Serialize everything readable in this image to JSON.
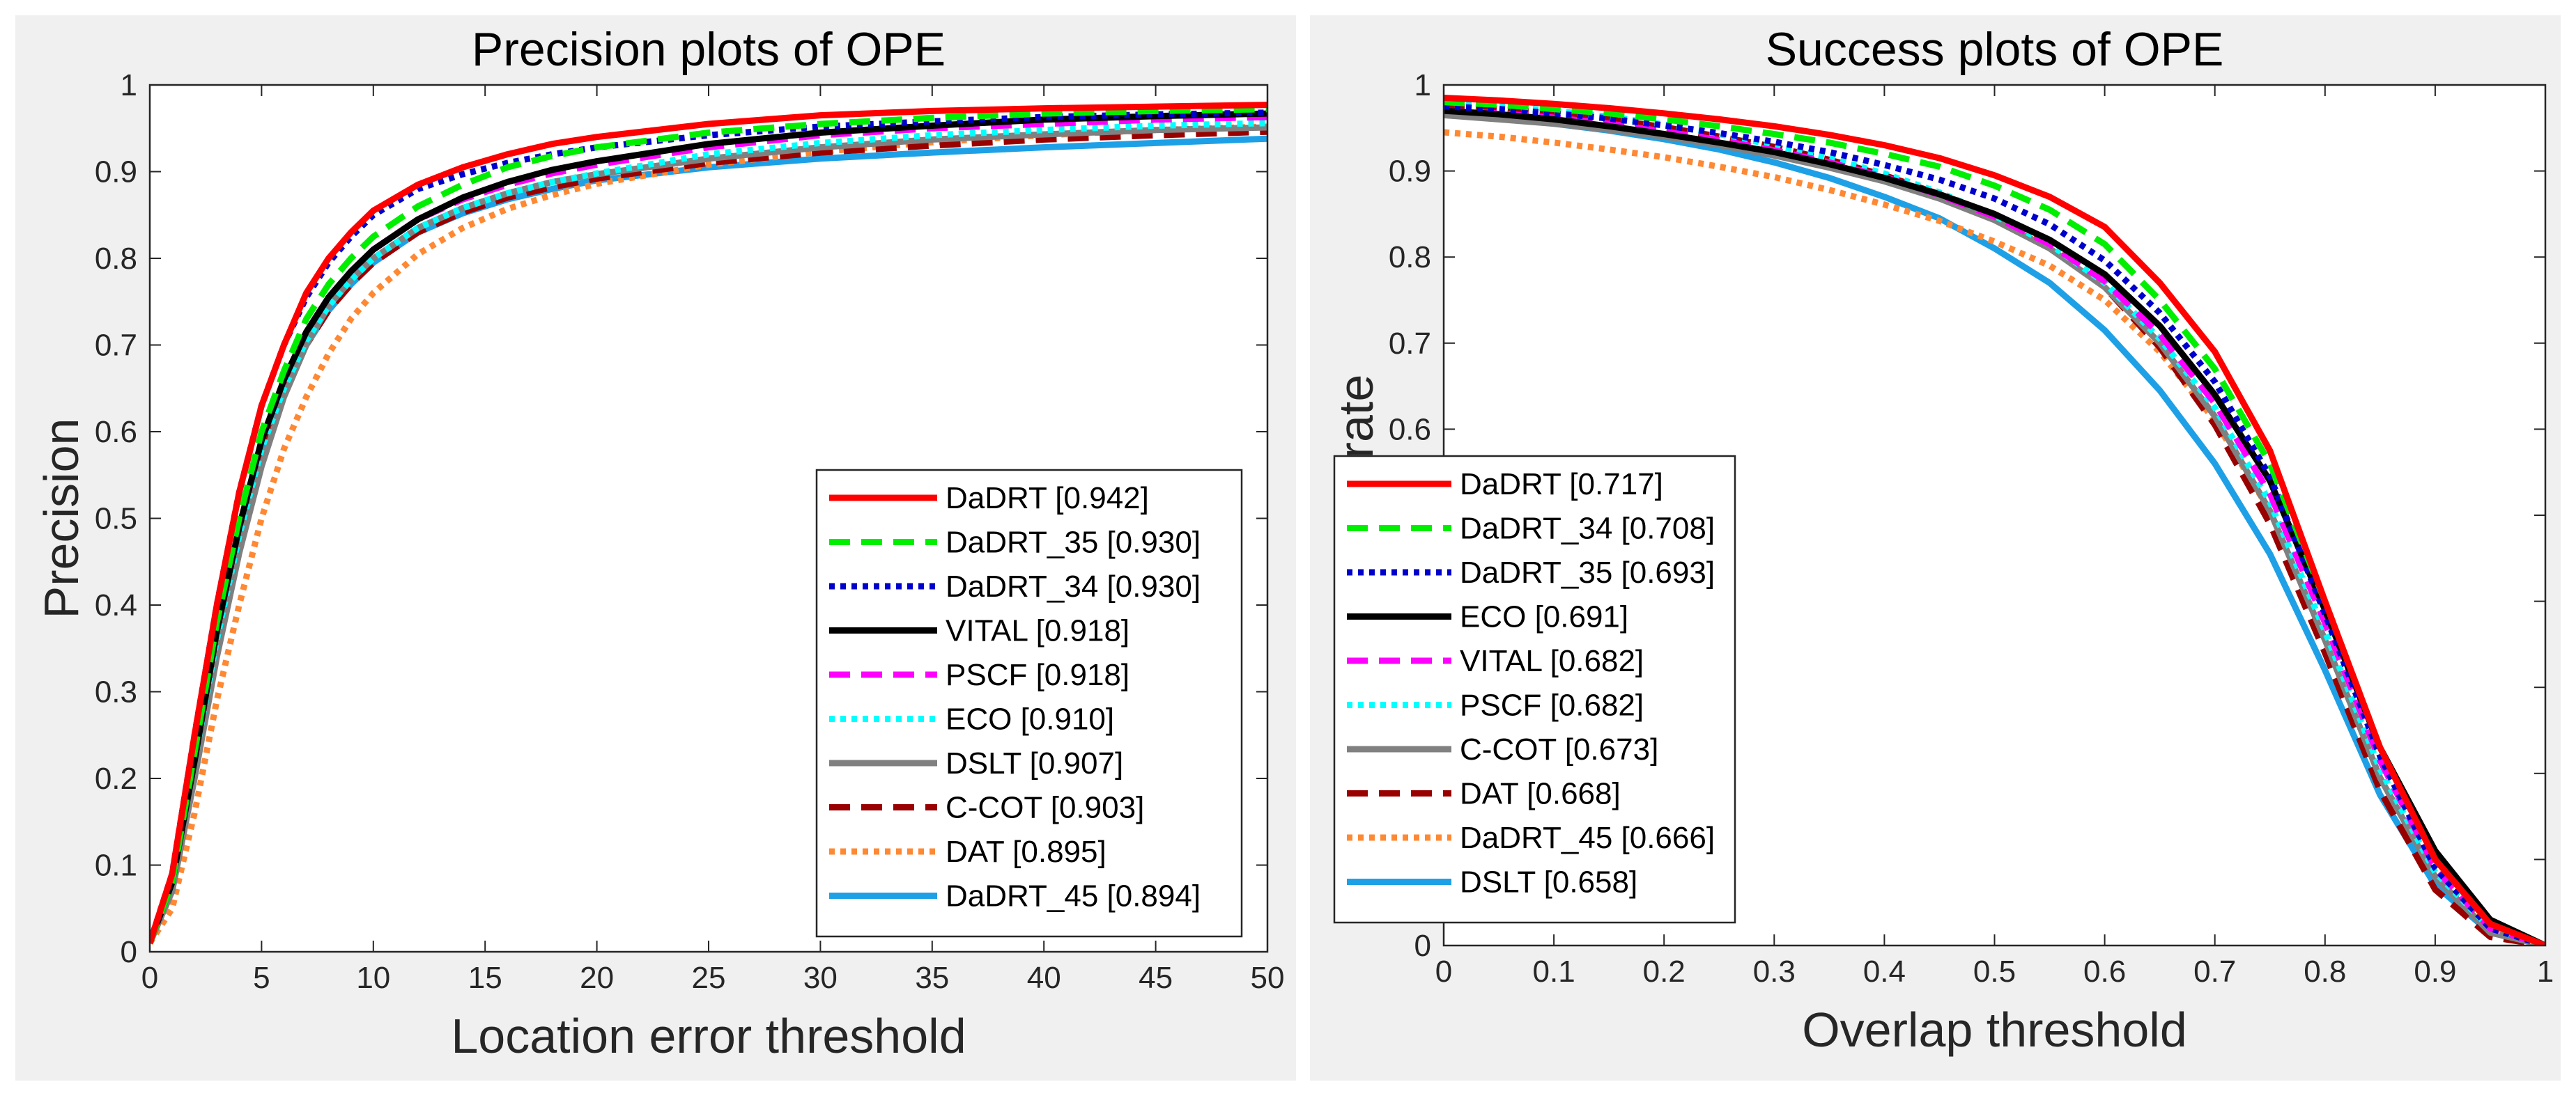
{
  "chart_data": [
    {
      "id": "left",
      "type": "line",
      "title": "Precision plots of OPE",
      "xlabel": "Location error threshold",
      "ylabel": "Precision",
      "xlim": [
        0,
        50
      ],
      "ylim": [
        0,
        1
      ],
      "xticks": [
        "0",
        "5",
        "10",
        "15",
        "20",
        "25",
        "30",
        "35",
        "40",
        "45",
        "50"
      ],
      "yticks": [
        "0",
        "0.1",
        "0.2",
        "0.3",
        "0.4",
        "0.5",
        "0.6",
        "0.7",
        "0.8",
        "0.9",
        "1"
      ],
      "legend_position": "lower-right",
      "x": [
        0,
        1,
        2,
        3,
        4,
        5,
        6,
        7,
        8,
        9,
        10,
        12,
        14,
        16,
        18,
        20,
        25,
        30,
        35,
        40,
        45,
        50
      ],
      "series": [
        {
          "name": "DaDRT [0.942]",
          "color": "#ff0000",
          "style": "solid",
          "values": [
            0.01,
            0.09,
            0.25,
            0.4,
            0.53,
            0.63,
            0.7,
            0.76,
            0.8,
            0.83,
            0.855,
            0.885,
            0.905,
            0.92,
            0.932,
            0.94,
            0.955,
            0.965,
            0.97,
            0.973,
            0.975,
            0.977
          ]
        },
        {
          "name": "DaDRT_35 [0.930]",
          "color": "#00ee00",
          "style": "dashed",
          "values": [
            0.01,
            0.08,
            0.23,
            0.38,
            0.5,
            0.6,
            0.67,
            0.73,
            0.77,
            0.8,
            0.825,
            0.86,
            0.885,
            0.905,
            0.918,
            0.928,
            0.945,
            0.955,
            0.962,
            0.967,
            0.97,
            0.972
          ]
        },
        {
          "name": "DaDRT_34 [0.930]",
          "color": "#0000cc",
          "style": "dotted",
          "values": [
            0.01,
            0.09,
            0.25,
            0.4,
            0.53,
            0.63,
            0.7,
            0.755,
            0.795,
            0.825,
            0.85,
            0.88,
            0.897,
            0.91,
            0.92,
            0.928,
            0.942,
            0.952,
            0.958,
            0.963,
            0.966,
            0.968
          ]
        },
        {
          "name": "VITAL [0.918]",
          "color": "#000000",
          "style": "solid",
          "values": [
            0.01,
            0.08,
            0.22,
            0.37,
            0.49,
            0.59,
            0.66,
            0.715,
            0.755,
            0.785,
            0.81,
            0.845,
            0.87,
            0.888,
            0.902,
            0.912,
            0.932,
            0.945,
            0.953,
            0.96,
            0.964,
            0.967
          ]
        },
        {
          "name": "PSCF [0.918]",
          "color": "#ff00ff",
          "style": "dashed",
          "values": [
            0.01,
            0.08,
            0.22,
            0.37,
            0.49,
            0.59,
            0.66,
            0.715,
            0.755,
            0.785,
            0.81,
            0.845,
            0.868,
            0.885,
            0.898,
            0.908,
            0.928,
            0.942,
            0.95,
            0.955,
            0.96,
            0.963
          ]
        },
        {
          "name": "ECO [0.910]",
          "color": "#00ffff",
          "style": "dotted",
          "values": [
            0.01,
            0.08,
            0.22,
            0.36,
            0.48,
            0.58,
            0.65,
            0.705,
            0.745,
            0.775,
            0.8,
            0.835,
            0.858,
            0.875,
            0.888,
            0.898,
            0.92,
            0.933,
            0.942,
            0.948,
            0.953,
            0.956
          ]
        },
        {
          "name": "DSLT [0.907]",
          "color": "#808080",
          "style": "solid",
          "values": [
            0.01,
            0.07,
            0.2,
            0.34,
            0.46,
            0.56,
            0.64,
            0.7,
            0.745,
            0.775,
            0.8,
            0.835,
            0.858,
            0.875,
            0.888,
            0.897,
            0.915,
            0.928,
            0.937,
            0.943,
            0.948,
            0.951
          ]
        },
        {
          "name": "C-COT [0.903]",
          "color": "#990000",
          "style": "dashed",
          "values": [
            0.01,
            0.08,
            0.22,
            0.36,
            0.48,
            0.58,
            0.65,
            0.7,
            0.74,
            0.77,
            0.795,
            0.83,
            0.853,
            0.87,
            0.882,
            0.892,
            0.91,
            0.922,
            0.93,
            0.937,
            0.942,
            0.946
          ]
        },
        {
          "name": "DAT [0.895]",
          "color": "#ff8833",
          "style": "dotted",
          "values": [
            0.01,
            0.05,
            0.16,
            0.29,
            0.4,
            0.5,
            0.58,
            0.64,
            0.69,
            0.73,
            0.76,
            0.805,
            0.835,
            0.857,
            0.873,
            0.886,
            0.908,
            0.923,
            0.934,
            0.942,
            0.948,
            0.952
          ]
        },
        {
          "name": "DaDRT_45 [0.894]",
          "color": "#1ea0e6",
          "style": "solid",
          "values": [
            0.01,
            0.08,
            0.22,
            0.36,
            0.48,
            0.58,
            0.65,
            0.7,
            0.74,
            0.77,
            0.795,
            0.83,
            0.852,
            0.868,
            0.88,
            0.89,
            0.905,
            0.915,
            0.922,
            0.928,
            0.933,
            0.938
          ]
        }
      ]
    },
    {
      "id": "right",
      "type": "line",
      "title": "Success plots of OPE",
      "xlabel": "Overlap threshold",
      "ylabel": "Success rate",
      "xlim": [
        0,
        1
      ],
      "ylim": [
        0,
        1
      ],
      "xticks": [
        "0",
        "0.1",
        "0.2",
        "0.3",
        "0.4",
        "0.5",
        "0.6",
        "0.7",
        "0.8",
        "0.9",
        "1"
      ],
      "yticks": [
        "0",
        "0.1",
        "0.2",
        "0.3",
        "0.4",
        "0.5",
        "0.6",
        "0.7",
        "0.8",
        "0.9",
        "1"
      ],
      "legend_position": "lower-left",
      "x": [
        0,
        0.05,
        0.1,
        0.15,
        0.2,
        0.25,
        0.3,
        0.35,
        0.4,
        0.45,
        0.5,
        0.55,
        0.6,
        0.65,
        0.7,
        0.75,
        0.8,
        0.85,
        0.9,
        0.95,
        1
      ],
      "series": [
        {
          "name": "DaDRT [0.717]",
          "color": "#ff0000",
          "style": "solid",
          "values": [
            0.985,
            0.982,
            0.978,
            0.973,
            0.967,
            0.96,
            0.952,
            0.942,
            0.93,
            0.915,
            0.895,
            0.87,
            0.835,
            0.77,
            0.69,
            0.575,
            0.4,
            0.23,
            0.1,
            0.025,
            0.0
          ]
        },
        {
          "name": "DaDRT_34 [0.708]",
          "color": "#00ee00",
          "style": "dashed",
          "values": [
            0.98,
            0.977,
            0.972,
            0.967,
            0.96,
            0.952,
            0.943,
            0.933,
            0.92,
            0.905,
            0.883,
            0.855,
            0.815,
            0.75,
            0.67,
            0.56,
            0.4,
            0.23,
            0.1,
            0.025,
            0.0
          ]
        },
        {
          "name": "DaDRT_35 [0.693]",
          "color": "#0000cc",
          "style": "dotted",
          "values": [
            0.975,
            0.972,
            0.967,
            0.961,
            0.953,
            0.944,
            0.934,
            0.922,
            0.907,
            0.89,
            0.868,
            0.838,
            0.796,
            0.735,
            0.655,
            0.545,
            0.385,
            0.22,
            0.09,
            0.02,
            0.0
          ]
        },
        {
          "name": "ECO [0.691]",
          "color": "#000000",
          "style": "solid",
          "values": [
            0.97,
            0.966,
            0.96,
            0.952,
            0.943,
            0.933,
            0.922,
            0.908,
            0.892,
            0.873,
            0.85,
            0.82,
            0.78,
            0.72,
            0.64,
            0.54,
            0.39,
            0.23,
            0.11,
            0.03,
            0.0
          ]
        },
        {
          "name": "VITAL [0.682]",
          "color": "#ff00ff",
          "style": "dashed",
          "values": [
            0.97,
            0.967,
            0.962,
            0.955,
            0.946,
            0.936,
            0.924,
            0.91,
            0.893,
            0.872,
            0.847,
            0.815,
            0.772,
            0.71,
            0.63,
            0.525,
            0.375,
            0.215,
            0.09,
            0.02,
            0.0
          ]
        },
        {
          "name": "PSCF [0.682]",
          "color": "#00ffff",
          "style": "dotted",
          "values": [
            0.978,
            0.975,
            0.97,
            0.963,
            0.954,
            0.943,
            0.93,
            0.915,
            0.897,
            0.875,
            0.848,
            0.815,
            0.77,
            0.705,
            0.625,
            0.515,
            0.365,
            0.205,
            0.085,
            0.02,
            0.0
          ]
        },
        {
          "name": "C-COT [0.673]",
          "color": "#808080",
          "style": "solid",
          "values": [
            0.965,
            0.96,
            0.955,
            0.948,
            0.94,
            0.93,
            0.918,
            0.904,
            0.888,
            0.868,
            0.843,
            0.81,
            0.765,
            0.7,
            0.615,
            0.505,
            0.355,
            0.195,
            0.08,
            0.015,
            0.0
          ]
        },
        {
          "name": "DAT [0.668]",
          "color": "#990000",
          "style": "dashed",
          "values": [
            0.975,
            0.972,
            0.967,
            0.96,
            0.951,
            0.94,
            0.928,
            0.913,
            0.895,
            0.873,
            0.846,
            0.812,
            0.765,
            0.695,
            0.605,
            0.49,
            0.34,
            0.18,
            0.065,
            0.01,
            0.0
          ]
        },
        {
          "name": "DaDRT_45 [0.666]",
          "color": "#ff8833",
          "style": "dotted",
          "values": [
            0.945,
            0.94,
            0.933,
            0.925,
            0.916,
            0.905,
            0.893,
            0.878,
            0.861,
            0.842,
            0.818,
            0.79,
            0.75,
            0.69,
            0.61,
            0.505,
            0.355,
            0.195,
            0.08,
            0.015,
            0.0
          ]
        },
        {
          "name": "DSLT [0.658]",
          "color": "#1ea0e6",
          "style": "solid",
          "values": [
            0.965,
            0.961,
            0.955,
            0.947,
            0.937,
            0.925,
            0.91,
            0.892,
            0.87,
            0.845,
            0.81,
            0.77,
            0.715,
            0.645,
            0.56,
            0.455,
            0.32,
            0.175,
            0.07,
            0.015,
            0.0
          ]
        }
      ]
    }
  ]
}
